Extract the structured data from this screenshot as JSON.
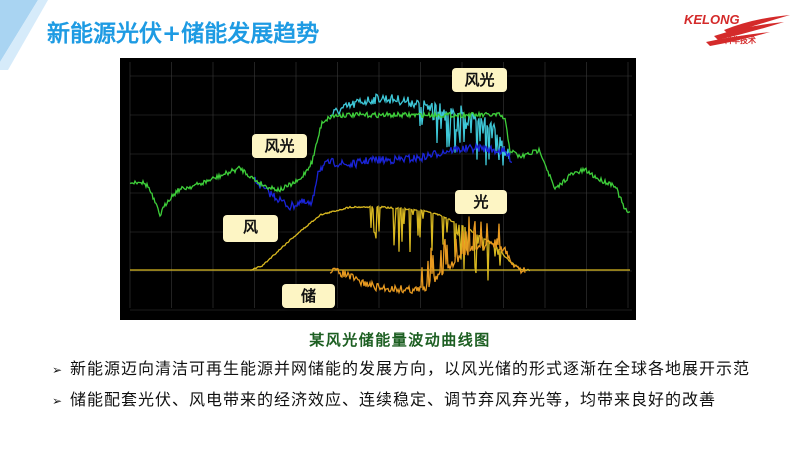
{
  "slide": {
    "title": "新能源光伏+储能发展趋势",
    "logo": {
      "brand": "KELONG",
      "subtitle": "科华技术",
      "color": "#d42a2a"
    },
    "accent_color": "#1e9be3"
  },
  "figure": {
    "callouts": {
      "wind_solar_top": "风光",
      "wind_solar_left": "风光",
      "wind": "风",
      "solar": "光",
      "storage": "储"
    },
    "series_colors": {
      "wind_solar": "#3ecf3a",
      "wind": "#1a24d8",
      "wind_solar_raw": "#3ec8d8",
      "solar": "#d8b820",
      "storage": "#e89a20"
    },
    "caption": "某风光储能量波动曲线图"
  },
  "bullets": [
    {
      "icon": "arrow-bullet-icon",
      "text": "新能源迈向清洁可再生能源并网储能的发展方向，以风光储的形式逐渐在全球各地展开示范"
    },
    {
      "icon": "arrow-bullet-icon",
      "text": "储能配套光伏、风电带来的经济效应、连续稳定、调节弃风弃光等，均带来良好的改善"
    }
  ]
}
